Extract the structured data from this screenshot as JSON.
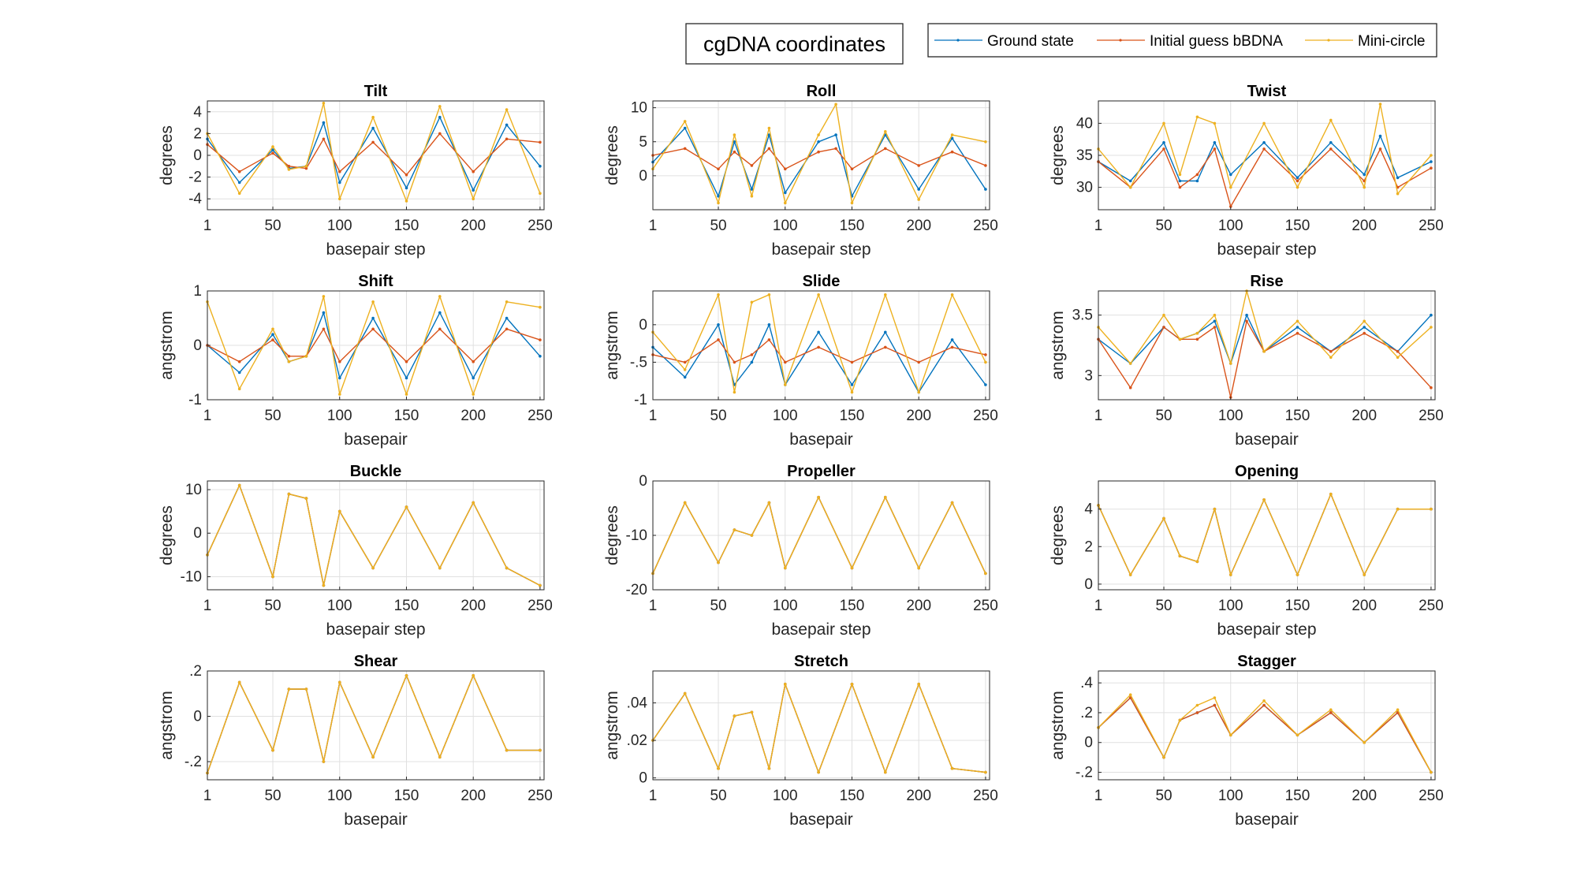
{
  "figure": {
    "title": "cgDNA coordinates",
    "legend": {
      "placement": "top-right",
      "entries": [
        {
          "name": "Ground state",
          "color": "#0072BD"
        },
        {
          "name": "Initial guess bBDNA",
          "color": "#D95319"
        },
        {
          "name": "Mini-circle",
          "color": "#EDB120"
        }
      ]
    }
  },
  "chart_data": [
    {
      "type": "line",
      "title": "Tilt",
      "xlabel": "basepair step",
      "ylabel": "degrees",
      "xlim": [
        1,
        253
      ],
      "ylim": [
        -5,
        5
      ],
      "xticks": [
        1,
        50,
        100,
        150,
        200,
        250
      ],
      "yticks": [
        -4,
        -2,
        0,
        2,
        4
      ],
      "x": [
        1,
        25,
        50,
        62,
        75,
        88,
        100,
        125,
        150,
        175,
        200,
        225,
        250
      ],
      "series": [
        {
          "name": "Ground state",
          "values": [
            1.5,
            -2.5,
            0.5,
            -1.2,
            -1.0,
            3.0,
            -2.5,
            2.5,
            -3.0,
            3.5,
            -3.2,
            2.8,
            -1.0
          ]
        },
        {
          "name": "Initial guess bBDNA",
          "values": [
            1.0,
            -1.5,
            0.2,
            -1.0,
            -1.2,
            1.5,
            -1.5,
            1.2,
            -1.8,
            2.0,
            -1.5,
            1.5,
            1.2
          ]
        },
        {
          "name": "Mini-circle",
          "values": [
            2.0,
            -3.5,
            0.8,
            -1.3,
            -1.0,
            4.8,
            -4.0,
            3.5,
            -4.2,
            4.5,
            -4.0,
            4.2,
            -3.5
          ]
        }
      ]
    },
    {
      "type": "line",
      "title": "Roll",
      "xlabel": "basepair step",
      "ylabel": "degrees",
      "xlim": [
        1,
        253
      ],
      "ylim": [
        -5,
        11
      ],
      "xticks": [
        1,
        50,
        100,
        150,
        200,
        250
      ],
      "yticks": [
        0,
        5,
        10
      ],
      "x": [
        1,
        25,
        50,
        62,
        75,
        88,
        100,
        125,
        138,
        150,
        175,
        200,
        225,
        250
      ],
      "series": [
        {
          "name": "Ground state",
          "values": [
            2.0,
            7.0,
            -3.0,
            5.0,
            -2.0,
            6.0,
            -2.5,
            5.0,
            6.0,
            -3.0,
            6.0,
            -2.0,
            5.5,
            -2.0
          ]
        },
        {
          "name": "Initial guess bBDNA",
          "values": [
            3.0,
            4.0,
            1.0,
            3.5,
            1.5,
            4.0,
            1.0,
            3.5,
            4.0,
            1.0,
            4.0,
            1.5,
            3.5,
            1.5
          ]
        },
        {
          "name": "Mini-circle",
          "values": [
            1.0,
            8.0,
            -4.0,
            6.0,
            -3.0,
            7.0,
            -4.0,
            6.0,
            10.5,
            -4.0,
            6.5,
            -3.5,
            6.0,
            5.0
          ]
        }
      ]
    },
    {
      "type": "line",
      "title": "Twist",
      "xlabel": "basepair step",
      "ylabel": "degrees",
      "xlim": [
        1,
        253
      ],
      "ylim": [
        26.5,
        43.5
      ],
      "xticks": [
        1,
        50,
        100,
        150,
        200,
        250
      ],
      "yticks": [
        30,
        35,
        40
      ],
      "x": [
        1,
        25,
        50,
        62,
        75,
        88,
        100,
        125,
        150,
        175,
        200,
        212,
        225,
        250
      ],
      "series": [
        {
          "name": "Ground state",
          "values": [
            34.0,
            31.0,
            37.0,
            31.0,
            31.0,
            37.0,
            32.0,
            37.0,
            31.5,
            37.0,
            32.0,
            38.0,
            31.5,
            34.0
          ]
        },
        {
          "name": "Initial guess bBDNA",
          "values": [
            34.0,
            30.0,
            36.0,
            30.0,
            32.0,
            36.0,
            27.0,
            36.0,
            31.0,
            36.0,
            31.0,
            36.0,
            30.0,
            33.0
          ]
        },
        {
          "name": "Mini-circle",
          "values": [
            36.0,
            30.0,
            40.0,
            32.0,
            41.0,
            40.0,
            30.0,
            40.0,
            30.0,
            40.5,
            30.0,
            43.0,
            29.0,
            35.0
          ]
        }
      ]
    },
    {
      "type": "line",
      "title": "Shift",
      "xlabel": "basepair",
      "ylabel": "angstrom",
      "xlim": [
        1,
        253
      ],
      "ylim": [
        -1,
        1
      ],
      "xticks": [
        1,
        50,
        100,
        150,
        200,
        250
      ],
      "yticks": [
        -1,
        0,
        1
      ],
      "x": [
        1,
        25,
        50,
        62,
        75,
        88,
        100,
        125,
        150,
        175,
        200,
        225,
        250
      ],
      "series": [
        {
          "name": "Ground state",
          "values": [
            0.0,
            -0.5,
            0.2,
            -0.3,
            -0.2,
            0.6,
            -0.6,
            0.5,
            -0.6,
            0.6,
            -0.6,
            0.5,
            -0.2
          ]
        },
        {
          "name": "Initial guess bBDNA",
          "values": [
            0.0,
            -0.3,
            0.1,
            -0.2,
            -0.2,
            0.3,
            -0.3,
            0.3,
            -0.3,
            0.3,
            -0.3,
            0.3,
            0.1
          ]
        },
        {
          "name": "Mini-circle",
          "values": [
            0.8,
            -0.8,
            0.3,
            -0.3,
            -0.2,
            0.9,
            -0.9,
            0.8,
            -0.9,
            0.9,
            -0.9,
            0.8,
            0.7
          ]
        }
      ]
    },
    {
      "type": "line",
      "title": "Slide",
      "xlabel": "basepair",
      "ylabel": "angstrom",
      "xlim": [
        1,
        253
      ],
      "ylim": [
        -1,
        0.45
      ],
      "xticks": [
        1,
        50,
        100,
        150,
        200,
        250
      ],
      "yticks": [
        -1,
        -0.5,
        0
      ],
      "x": [
        1,
        25,
        50,
        62,
        75,
        88,
        100,
        125,
        150,
        175,
        200,
        225,
        250
      ],
      "series": [
        {
          "name": "Ground state",
          "values": [
            -0.3,
            -0.7,
            0.0,
            -0.8,
            -0.5,
            0.0,
            -0.8,
            -0.1,
            -0.8,
            -0.1,
            -0.9,
            -0.2,
            -0.8
          ]
        },
        {
          "name": "Initial guess bBDNA",
          "values": [
            -0.4,
            -0.5,
            -0.2,
            -0.5,
            -0.4,
            -0.2,
            -0.5,
            -0.3,
            -0.5,
            -0.3,
            -0.5,
            -0.3,
            -0.4
          ]
        },
        {
          "name": "Mini-circle",
          "values": [
            -0.1,
            -0.6,
            0.4,
            -0.9,
            0.3,
            0.4,
            -0.8,
            0.4,
            -0.9,
            0.4,
            -0.9,
            0.4,
            -0.5
          ]
        }
      ]
    },
    {
      "type": "line",
      "title": "Rise",
      "xlabel": "basepair",
      "ylabel": "angstrom",
      "xlim": [
        1,
        253
      ],
      "ylim": [
        2.8,
        3.7
      ],
      "xticks": [
        1,
        50,
        100,
        150,
        200,
        250
      ],
      "yticks": [
        3,
        3.5
      ],
      "x": [
        1,
        25,
        50,
        62,
        75,
        88,
        100,
        112,
        125,
        150,
        175,
        200,
        225,
        250
      ],
      "series": [
        {
          "name": "Ground state",
          "values": [
            3.3,
            3.1,
            3.4,
            3.3,
            3.35,
            3.45,
            3.1,
            3.5,
            3.2,
            3.4,
            3.2,
            3.4,
            3.2,
            3.5
          ]
        },
        {
          "name": "Initial guess bBDNA",
          "values": [
            3.3,
            2.9,
            3.4,
            3.3,
            3.3,
            3.4,
            2.82,
            3.45,
            3.2,
            3.35,
            3.2,
            3.35,
            3.2,
            2.9
          ]
        },
        {
          "name": "Mini-circle",
          "values": [
            3.4,
            3.1,
            3.5,
            3.3,
            3.35,
            3.5,
            3.1,
            3.7,
            3.2,
            3.45,
            3.15,
            3.45,
            3.15,
            3.4
          ]
        }
      ]
    },
    {
      "type": "line",
      "title": "Buckle",
      "xlabel": "basepair step",
      "ylabel": "degrees",
      "xlim": [
        1,
        253
      ],
      "ylim": [
        -13,
        12
      ],
      "xticks": [
        1,
        50,
        100,
        150,
        200,
        250
      ],
      "yticks": [
        -10,
        0,
        10
      ],
      "x": [
        1,
        25,
        50,
        62,
        75,
        88,
        100,
        125,
        150,
        175,
        200,
        225,
        250
      ],
      "series": [
        {
          "name": "Ground state",
          "values": [
            -5.0,
            11.0,
            -10.0,
            9.0,
            8.0,
            -12.0,
            5.0,
            -8.0,
            6.0,
            -8.0,
            7.0,
            -8.0,
            -12.0
          ]
        },
        {
          "name": "Initial guess bBDNA",
          "values": [
            -5.0,
            11.0,
            -10.0,
            9.0,
            8.0,
            -12.0,
            5.0,
            -8.0,
            6.0,
            -8.0,
            7.0,
            -8.0,
            -12.0
          ]
        },
        {
          "name": "Mini-circle",
          "values": [
            -5.0,
            11.0,
            -10.0,
            9.0,
            8.0,
            -12.0,
            5.0,
            -8.0,
            6.0,
            -8.0,
            7.0,
            -8.0,
            -12.0
          ]
        }
      ]
    },
    {
      "type": "line",
      "title": "Propeller",
      "xlabel": "basepair step",
      "ylabel": "degrees",
      "xlim": [
        1,
        253
      ],
      "ylim": [
        -20,
        0
      ],
      "xticks": [
        1,
        50,
        100,
        150,
        200,
        250
      ],
      "yticks": [
        -20,
        -10,
        0
      ],
      "x": [
        1,
        25,
        50,
        62,
        75,
        88,
        100,
        125,
        150,
        175,
        200,
        225,
        250
      ],
      "series": [
        {
          "name": "Ground state",
          "values": [
            -17.0,
            -4.0,
            -15.0,
            -9.0,
            -10.0,
            -4.0,
            -16.0,
            -3.0,
            -16.0,
            -3.0,
            -16.0,
            -4.0,
            -17.0
          ]
        },
        {
          "name": "Initial guess bBDNA",
          "values": [
            -17.0,
            -4.0,
            -15.0,
            -9.0,
            -10.0,
            -4.0,
            -16.0,
            -3.0,
            -16.0,
            -3.0,
            -16.0,
            -4.0,
            -17.0
          ]
        },
        {
          "name": "Mini-circle",
          "values": [
            -17.0,
            -4.0,
            -15.0,
            -9.0,
            -10.0,
            -4.0,
            -16.0,
            -3.0,
            -16.0,
            -3.0,
            -16.0,
            -4.0,
            -17.0
          ]
        }
      ]
    },
    {
      "type": "line",
      "title": "Opening",
      "xlabel": "basepair step",
      "ylabel": "degrees",
      "xlim": [
        1,
        253
      ],
      "ylim": [
        -0.3,
        5.5
      ],
      "xticks": [
        1,
        50,
        100,
        150,
        200,
        250
      ],
      "yticks": [
        0,
        2,
        4
      ],
      "x": [
        1,
        25,
        50,
        62,
        75,
        88,
        100,
        125,
        150,
        175,
        200,
        225,
        250
      ],
      "series": [
        {
          "name": "Ground state",
          "values": [
            4.2,
            0.5,
            3.5,
            1.5,
            1.2,
            4.0,
            0.5,
            4.5,
            0.5,
            4.8,
            0.5,
            4.0,
            4.0
          ]
        },
        {
          "name": "Initial guess bBDNA",
          "values": [
            4.2,
            0.5,
            3.5,
            1.5,
            1.2,
            4.0,
            0.5,
            4.5,
            0.5,
            4.8,
            0.5,
            4.0,
            4.0
          ]
        },
        {
          "name": "Mini-circle",
          "values": [
            4.2,
            0.5,
            3.5,
            1.5,
            1.2,
            4.0,
            0.5,
            4.5,
            0.5,
            4.8,
            0.5,
            4.0,
            4.0
          ]
        }
      ]
    },
    {
      "type": "line",
      "title": "Shear",
      "xlabel": "basepair",
      "ylabel": "angstrom",
      "xlim": [
        1,
        253
      ],
      "ylim": [
        -0.28,
        0.2
      ],
      "xticks": [
        1,
        50,
        100,
        150,
        200,
        250
      ],
      "yticks": [
        -0.2,
        0,
        0.2
      ],
      "x": [
        1,
        25,
        50,
        62,
        75,
        88,
        100,
        125,
        150,
        175,
        200,
        225,
        250
      ],
      "series": [
        {
          "name": "Ground state",
          "values": [
            -0.25,
            0.15,
            -0.15,
            0.12,
            0.12,
            -0.2,
            0.15,
            -0.18,
            0.18,
            -0.18,
            0.18,
            -0.15,
            -0.15
          ]
        },
        {
          "name": "Initial guess bBDNA",
          "values": [
            -0.25,
            0.15,
            -0.15,
            0.12,
            0.12,
            -0.2,
            0.15,
            -0.18,
            0.18,
            -0.18,
            0.18,
            -0.15,
            -0.15
          ]
        },
        {
          "name": "Mini-circle",
          "values": [
            -0.25,
            0.15,
            -0.15,
            0.12,
            0.12,
            -0.2,
            0.15,
            -0.18,
            0.18,
            -0.18,
            0.18,
            -0.15,
            -0.15
          ]
        }
      ]
    },
    {
      "type": "line",
      "title": "Stretch",
      "xlabel": "basepair",
      "ylabel": "angstrom",
      "xlim": [
        1,
        253
      ],
      "ylim": [
        -0.001,
        0.057
      ],
      "xticks": [
        1,
        50,
        100,
        150,
        200,
        250
      ],
      "yticks": [
        0,
        0.02,
        0.04
      ],
      "x": [
        1,
        25,
        50,
        62,
        75,
        88,
        100,
        125,
        150,
        175,
        200,
        225,
        250
      ],
      "series": [
        {
          "name": "Ground state",
          "values": [
            0.02,
            0.045,
            0.005,
            0.033,
            0.035,
            0.005,
            0.05,
            0.003,
            0.05,
            0.003,
            0.05,
            0.005,
            0.003
          ]
        },
        {
          "name": "Initial guess bBDNA",
          "values": [
            0.02,
            0.045,
            0.005,
            0.033,
            0.035,
            0.005,
            0.05,
            0.003,
            0.05,
            0.003,
            0.05,
            0.005,
            0.003
          ]
        },
        {
          "name": "Mini-circle",
          "values": [
            0.02,
            0.045,
            0.005,
            0.033,
            0.035,
            0.005,
            0.05,
            0.003,
            0.05,
            0.003,
            0.05,
            0.005,
            0.003
          ]
        }
      ]
    },
    {
      "type": "line",
      "title": "Stagger",
      "xlabel": "basepair",
      "ylabel": "angstrom",
      "xlim": [
        1,
        253
      ],
      "ylim": [
        -0.25,
        0.48
      ],
      "xticks": [
        1,
        50,
        100,
        150,
        200,
        250
      ],
      "yticks": [
        -0.2,
        0,
        0.2,
        0.4
      ],
      "x": [
        1,
        25,
        50,
        62,
        75,
        88,
        100,
        125,
        150,
        175,
        200,
        225,
        250
      ],
      "series": [
        {
          "name": "Ground state",
          "values": [
            0.1,
            0.3,
            -0.1,
            0.15,
            0.2,
            0.25,
            0.05,
            0.25,
            0.05,
            0.2,
            0.0,
            0.2,
            -0.2
          ]
        },
        {
          "name": "Initial guess bBDNA",
          "values": [
            0.1,
            0.3,
            -0.1,
            0.15,
            0.2,
            0.25,
            0.05,
            0.25,
            0.05,
            0.2,
            0.0,
            0.2,
            -0.2
          ]
        },
        {
          "name": "Mini-circle",
          "values": [
            0.1,
            0.32,
            -0.1,
            0.15,
            0.25,
            0.3,
            0.05,
            0.28,
            0.05,
            0.22,
            0.0,
            0.22,
            -0.2
          ]
        }
      ]
    }
  ]
}
